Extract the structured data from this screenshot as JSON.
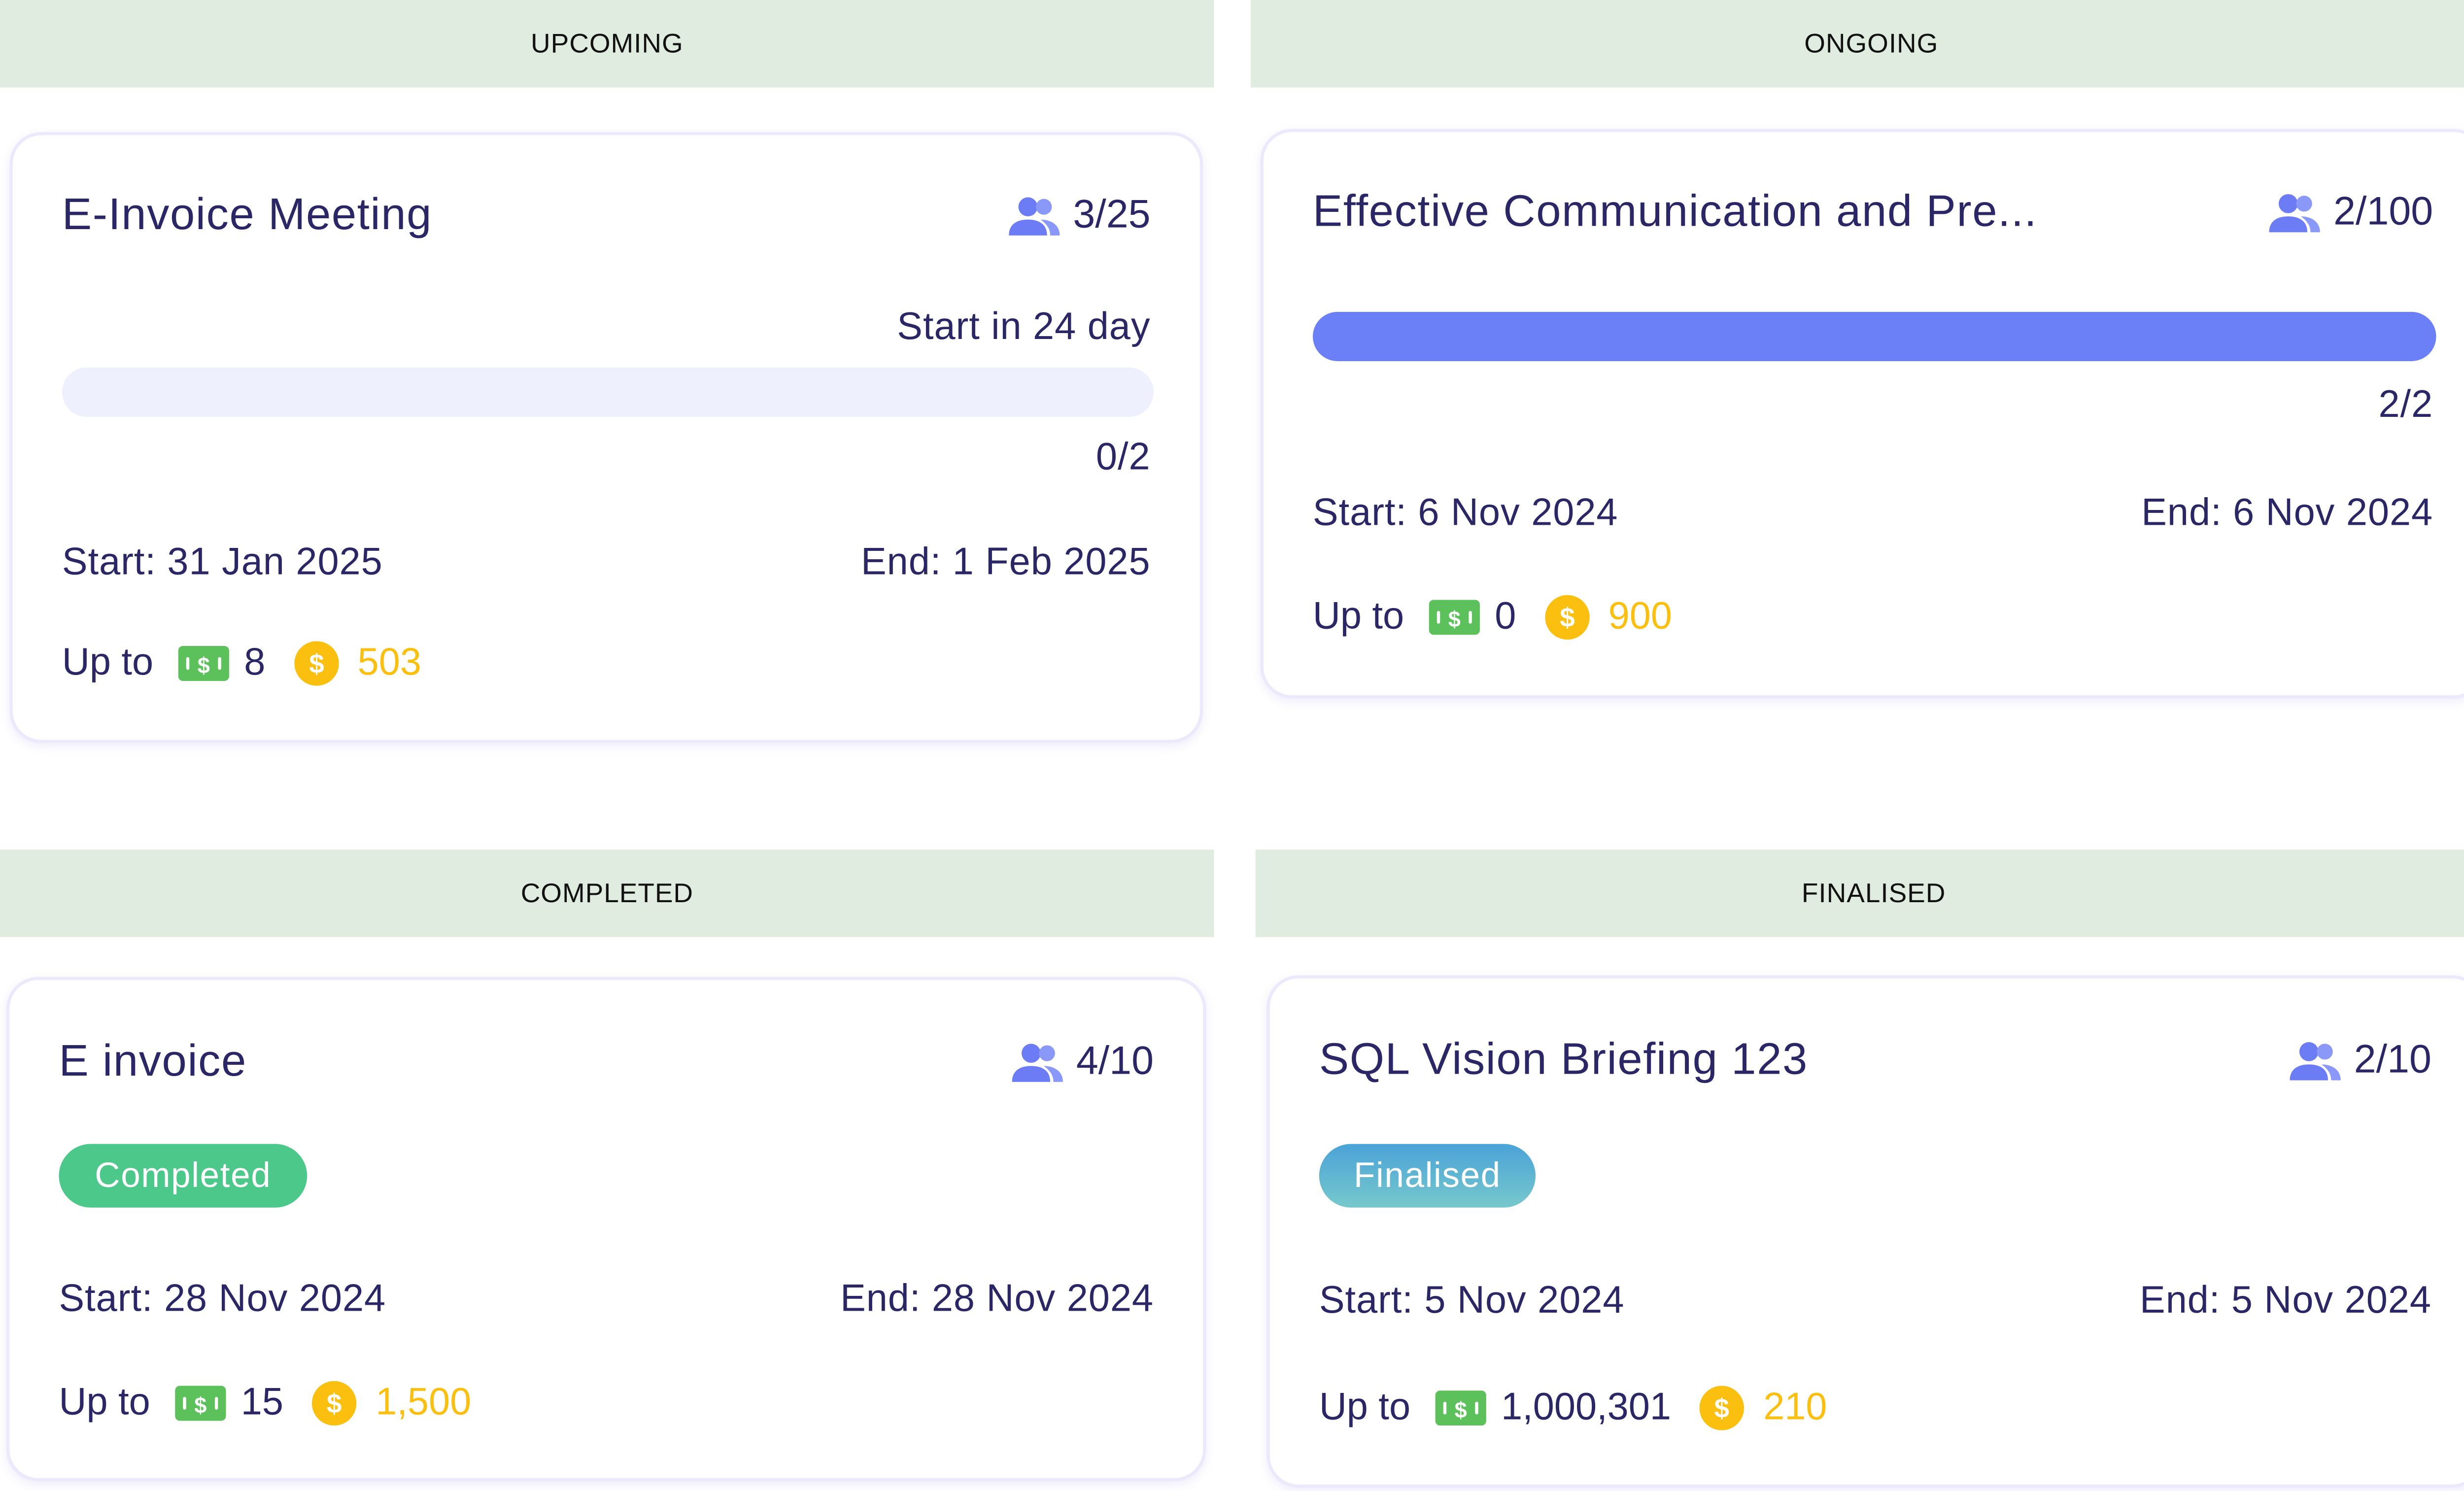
{
  "colors": {
    "header_bg": "#e1ece0",
    "text": "#2b2766",
    "accent": "#6b7ff7",
    "cash": "#5cc15a",
    "coin": "#fbbf10",
    "completed": "#4cc98a",
    "finalised_from": "#4aa3d8",
    "finalised_to": "#77c8cc"
  },
  "icons": {
    "participants": "people-icon",
    "cash": "cash-bill-icon",
    "coin": "dollar-coin-icon"
  },
  "sections": [
    {
      "header": "UPCOMING",
      "card": {
        "title": "E-Invoice Meeting",
        "participants": "3/25",
        "countdown": "Start in 24 day",
        "progress_label": "0/2",
        "progress": 0,
        "start": "Start: 31 Jan 2025",
        "end": "End: 1 Feb 2025",
        "reward_prefix": "Up to",
        "cash": "8",
        "coins": "503"
      }
    },
    {
      "header": "ONGOING",
      "card": {
        "title": "Effective Communication and Pre...",
        "participants": "2/100",
        "progress_label": "2/2",
        "progress": 1,
        "start": "Start: 6 Nov 2024",
        "end": "End: 6 Nov 2024",
        "reward_prefix": "Up to",
        "cash": "0",
        "coins": "900"
      }
    },
    {
      "header": "COMPLETED",
      "card": {
        "title": "E invoice",
        "participants": "4/10",
        "badge": "Completed",
        "start": "Start: 28 Nov 2024",
        "end": "End: 28 Nov 2024",
        "reward_prefix": "Up to",
        "cash": "15",
        "coins": "1,500"
      }
    },
    {
      "header": "FINALISED",
      "card": {
        "title": "SQL Vision Briefing 123",
        "participants": "2/10",
        "badge": "Finalised",
        "start": "Start: 5 Nov 2024",
        "end": "End: 5 Nov 2024",
        "reward_prefix": "Up to",
        "cash": "1,000,301",
        "coins": "210"
      }
    }
  ]
}
